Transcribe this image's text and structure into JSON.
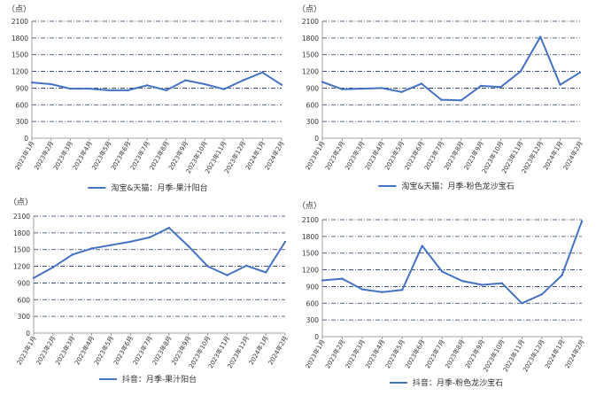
{
  "colors": {
    "line": "#4472C4",
    "grid": "#1F3864",
    "axis": "#888888",
    "text": "#333333"
  },
  "chart_data": [
    {
      "type": "line",
      "unit": "（点）",
      "ylim": [
        0,
        2100
      ],
      "yticks": [
        0,
        300,
        600,
        900,
        1200,
        1500,
        1800,
        2100
      ],
      "categories": [
        "2023年1月",
        "2023年2月",
        "2023年3月",
        "2023年4月",
        "2023年5月",
        "2023年6月",
        "2023年7月",
        "2023年8月",
        "2023年9月",
        "2023年10月",
        "2023年11月",
        "2023年12月",
        "2024年1月",
        "2024年2月"
      ],
      "series": [
        {
          "name": "淘宝&天猫：月季-果汁阳台",
          "values": [
            1000,
            970,
            890,
            890,
            860,
            860,
            950,
            860,
            1040,
            970,
            880,
            1040,
            1180,
            960
          ]
        }
      ],
      "legend": "bottom"
    },
    {
      "type": "line",
      "unit": "（点）",
      "ylim": [
        0,
        2100
      ],
      "yticks": [
        0,
        300,
        600,
        900,
        1200,
        1500,
        1800,
        2100
      ],
      "categories": [
        "2023年1月",
        "2023年2月",
        "2023年3月",
        "2023年4月",
        "2023年5月",
        "2023年6月",
        "2023年7月",
        "2023年8月",
        "2023年9月",
        "2023年10月",
        "2023年11月",
        "2023年12月",
        "2024年1月",
        "2024年2月"
      ],
      "series": [
        {
          "name": "淘宝&天猫：月季-粉色龙沙宝石",
          "values": [
            1010,
            880,
            890,
            900,
            830,
            980,
            690,
            680,
            940,
            920,
            1200,
            1820,
            960,
            1180
          ]
        }
      ],
      "legend": "bottom"
    },
    {
      "type": "line",
      "unit": "（点）",
      "ylim": [
        0,
        2100
      ],
      "yticks": [
        0,
        300,
        600,
        900,
        1200,
        1500,
        1800,
        2100
      ],
      "categories": [
        "2023年1月",
        "2023年2月",
        "2023年3月",
        "2023年4月",
        "2023年5月",
        "2023年6月",
        "2023年7月",
        "2023年8月",
        "2023年9月",
        "2023年10月",
        "2023年11月",
        "2023年12月",
        "2024年1月",
        "2024年2月"
      ],
      "series": [
        {
          "name": "抖音：月季-果汁阳台",
          "values": [
            990,
            1180,
            1410,
            1520,
            1580,
            1640,
            1720,
            1890,
            1560,
            1200,
            1040,
            1210,
            1090,
            1640
          ]
        }
      ],
      "legend": "bottom"
    },
    {
      "type": "line",
      "unit": "（点）",
      "ylim": [
        0,
        2100
      ],
      "yticks": [
        0,
        300,
        600,
        900,
        1200,
        1500,
        1800,
        2100
      ],
      "categories": [
        "2023年1月",
        "2023年2月",
        "2023年3月",
        "2023年4月",
        "2023年5月",
        "2023年6月",
        "2023年7月",
        "2023年8月",
        "2023年9月",
        "2023年10月",
        "2023年11月",
        "2023年12月",
        "2024年1月",
        "2024年2月"
      ],
      "series": [
        {
          "name": "抖音：月季-粉色龙沙宝石",
          "values": [
            1010,
            1040,
            850,
            800,
            840,
            1630,
            1170,
            1000,
            930,
            960,
            600,
            760,
            1100,
            2070
          ]
        }
      ],
      "legend": "bottom"
    }
  ]
}
